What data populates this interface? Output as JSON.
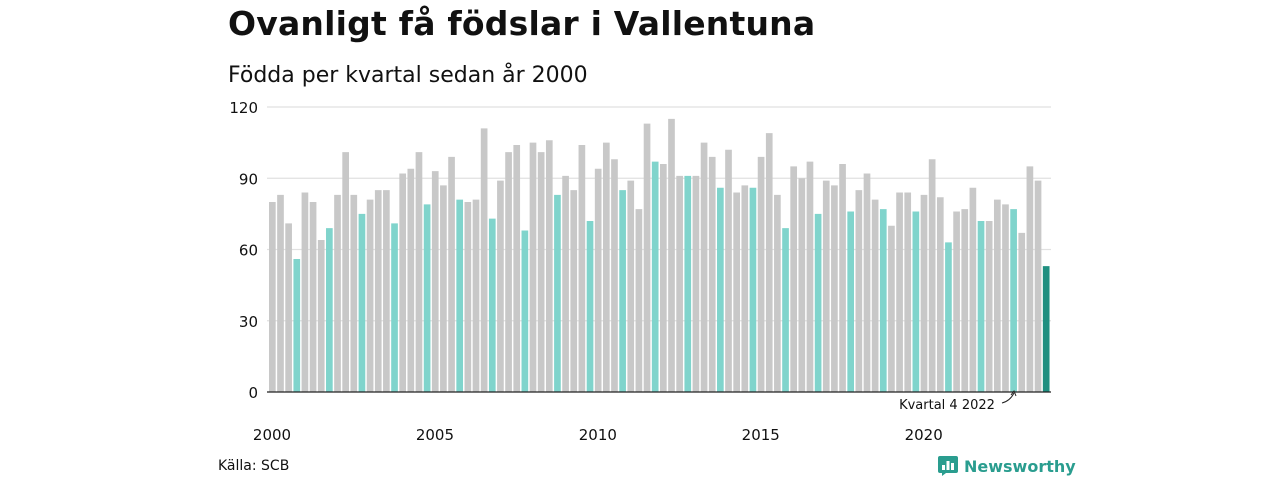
{
  "title": "Ovanligt få födslar i Vallentuna",
  "subtitle": "Födda per kvartal sedan år 2000",
  "source": "Källa: SCB",
  "brand": "Newsworthy",
  "annotation": "Kvartal 4 2022",
  "colors": {
    "default": "#c8c8c8",
    "q4": "#80d4cc",
    "latest": "#1f8f80",
    "grid": "#e1e1e1",
    "brand": "#2a9d8f"
  },
  "chart_data": {
    "type": "bar",
    "title": "Ovanligt få födslar i Vallentuna",
    "subtitle": "Födda per kvartal sedan år 2000",
    "ylim": [
      0,
      120
    ],
    "yticks": [
      0,
      30,
      60,
      90,
      120
    ],
    "xticks": [
      "2000",
      "2005",
      "2010",
      "2015",
      "2020"
    ],
    "grid": true,
    "series": [
      {
        "values": [
          80,
          83,
          71,
          56,
          84,
          80,
          64,
          69,
          83,
          101,
          83,
          75,
          81,
          85,
          85,
          71,
          92,
          94,
          101,
          79,
          93,
          87,
          99,
          81,
          80,
          81,
          111,
          73,
          89,
          101,
          104,
          68,
          105,
          101,
          106,
          83,
          91,
          85,
          104,
          72,
          94,
          105,
          98,
          85,
          89,
          77,
          113,
          97,
          96,
          115,
          91,
          91,
          91,
          105,
          99,
          86,
          102,
          84,
          87,
          86,
          99,
          109,
          83,
          69,
          95,
          90,
          97,
          75,
          89,
          87,
          96,
          76,
          85,
          92,
          81,
          77,
          70,
          84,
          84,
          76,
          83,
          98,
          82,
          63,
          76,
          77,
          86,
          72,
          72,
          81,
          79,
          77,
          67,
          95,
          89,
          53
        ]
      }
    ]
  }
}
